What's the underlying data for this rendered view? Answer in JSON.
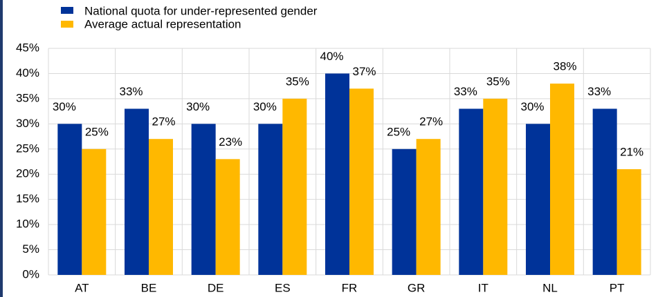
{
  "chart_data": {
    "type": "bar",
    "categories": [
      "AT",
      "BE",
      "DE",
      "ES",
      "FR",
      "GR",
      "IT",
      "NL",
      "PT"
    ],
    "series": [
      {
        "name": "National quota for under-represented gender",
        "color": "#003399",
        "values": [
          30,
          33,
          30,
          30,
          40,
          25,
          33,
          30,
          33
        ],
        "value_labels": [
          "30%",
          "33%",
          "30%",
          "30%",
          "40%",
          "25%",
          "33%",
          "30%",
          "33%"
        ]
      },
      {
        "name": "Average actual representation",
        "color": "#FFB800",
        "values": [
          25,
          27,
          23,
          35,
          37,
          27,
          35,
          38,
          21
        ],
        "value_labels": [
          "25%",
          "27%",
          "23%",
          "35%",
          "37%",
          "27%",
          "35%",
          "38%",
          "21%"
        ]
      }
    ],
    "ylim": [
      0,
      45
    ],
    "yticks": [
      {
        "value": 0,
        "label": "0%"
      },
      {
        "value": 5,
        "label": "5%"
      },
      {
        "value": 10,
        "label": "10%"
      },
      {
        "value": 15,
        "label": "15%"
      },
      {
        "value": 20,
        "label": "20%"
      },
      {
        "value": 25,
        "label": "25%"
      },
      {
        "value": 30,
        "label": "30%"
      },
      {
        "value": 35,
        "label": "35%"
      },
      {
        "value": 40,
        "label": "40%"
      },
      {
        "value": 45,
        "label": "45%"
      }
    ],
    "grid": true,
    "legend": "top-left"
  }
}
